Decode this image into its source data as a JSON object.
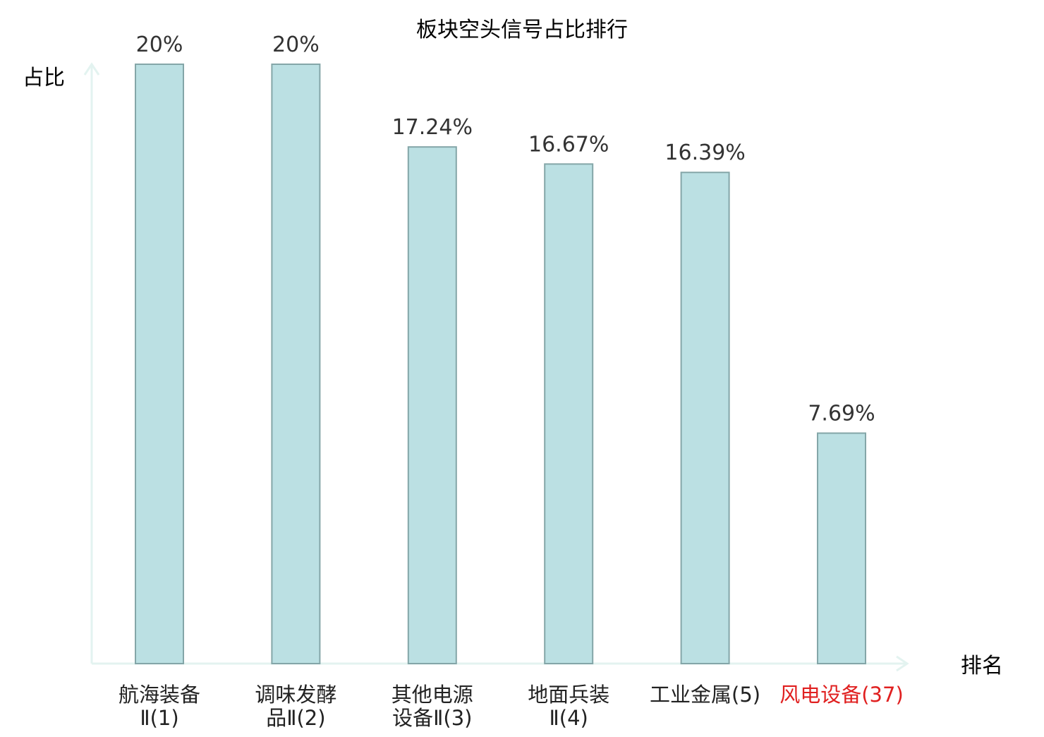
{
  "chart_data": {
    "type": "bar",
    "title": "板块空头信号占比排行",
    "ylabel": "占比",
    "xlabel": "排名",
    "ylim": [
      0,
      20
    ],
    "grid": false,
    "categories": [
      {
        "lines": [
          "航海装备",
          "Ⅱ(1)"
        ],
        "highlight": false
      },
      {
        "lines": [
          "调味发酵",
          "品Ⅱ(2)"
        ],
        "highlight": false
      },
      {
        "lines": [
          "其他电源",
          "设备Ⅱ(3)"
        ],
        "highlight": false
      },
      {
        "lines": [
          "地面兵装",
          "Ⅱ(4)"
        ],
        "highlight": false
      },
      {
        "lines": [
          "工业金属(5)"
        ],
        "highlight": false
      },
      {
        "lines": [
          "风电设备(37)"
        ],
        "highlight": true
      }
    ],
    "values": [
      20,
      20,
      17.24,
      16.67,
      16.39,
      7.69
    ],
    "value_labels": [
      "20%",
      "20%",
      "17.24%",
      "16.67%",
      "16.39%",
      "7.69%"
    ]
  },
  "colors": {
    "bar_fill": "#bbe0e3",
    "bar_stroke": "#84a6a8",
    "axis": "#e3f3f0",
    "text": "#333333",
    "label_text": "#222222",
    "highlight_text": "#e02020"
  }
}
